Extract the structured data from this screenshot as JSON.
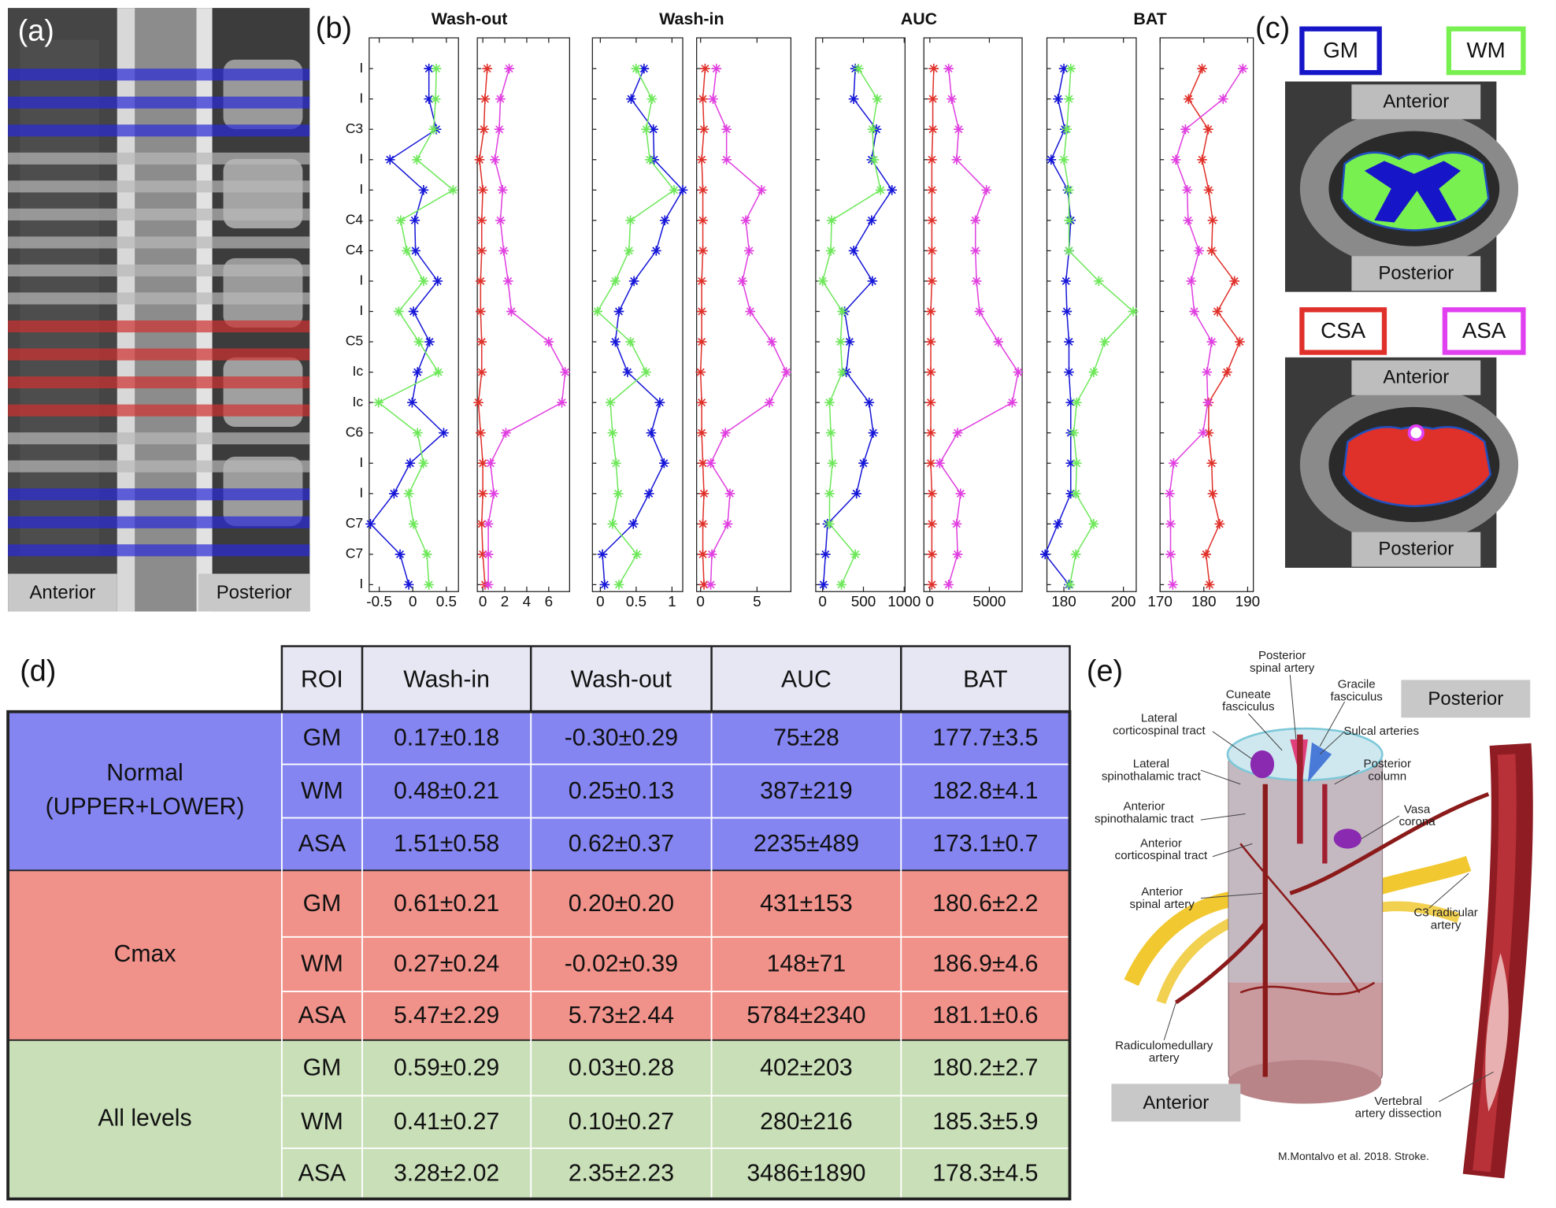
{
  "panels": {
    "a": {
      "label": "(a)",
      "anterior": "Anterior",
      "posterior": "Posterior"
    },
    "b": {
      "label": "(b)"
    },
    "c": {
      "label": "(c)",
      "legend": [
        {
          "label": "GM",
          "color": "#1616c8"
        },
        {
          "label": "WM",
          "color": "#78f050"
        },
        {
          "label": "CSA",
          "color": "#e0302a"
        },
        {
          "label": "ASA",
          "color": "#e040f0"
        }
      ],
      "views": [
        {
          "anterior": "Anterior",
          "posterior": "Posterior"
        },
        {
          "anterior": "Anterior",
          "posterior": "Posterior"
        }
      ]
    },
    "d": {
      "label": "(d)"
    },
    "e": {
      "label": "(e)",
      "posterior": "Posterior",
      "anterior": "Anterior",
      "citation": "M.Montalvo et al. 2018. Stroke.",
      "annotations": [
        {
          "lines": [
            "Posterior",
            "spinal artery"
          ]
        },
        {
          "lines": [
            "Gracile",
            "fasciculus"
          ]
        },
        {
          "lines": [
            "Cuneate",
            "fasciculus"
          ]
        },
        {
          "lines": [
            "Lateral",
            "corticospinal tract"
          ]
        },
        {
          "lines": [
            "Sulcal arteries"
          ]
        },
        {
          "lines": [
            "Posterior",
            "column"
          ]
        },
        {
          "lines": [
            "Lateral",
            "spinothalamic tract"
          ]
        },
        {
          "lines": [
            "Vasa",
            "corona"
          ]
        },
        {
          "lines": [
            "Anterior",
            "spinothalamic tract"
          ]
        },
        {
          "lines": [
            "Anterior",
            "corticospinal tract"
          ]
        },
        {
          "lines": [
            "Anterior",
            "spinal artery"
          ]
        },
        {
          "lines": [
            "C3 radicular",
            "artery"
          ]
        },
        {
          "lines": [
            "Radiculomedullary",
            "artery"
          ]
        },
        {
          "lines": [
            "Vertebral",
            "artery dissection"
          ]
        }
      ]
    }
  },
  "table": {
    "header": [
      "ROI",
      "Wash-in",
      "Wash-out",
      "AUC",
      "BAT"
    ],
    "groups": [
      {
        "label": [
          "Normal",
          "(UPPER+LOWER)"
        ],
        "rows": [
          [
            "GM",
            "0.17±0.18",
            "-0.30±0.29",
            "75±28",
            "177.7±3.5"
          ],
          [
            "WM",
            "0.48±0.21",
            "0.25±0.13",
            "387±219",
            "182.8±4.1"
          ],
          [
            "ASA",
            "1.51±0.58",
            "0.62±0.37",
            "2235±489",
            "173.1±0.7"
          ]
        ]
      },
      {
        "label": [
          "Cmax"
        ],
        "rows": [
          [
            "GM",
            "0.61±0.21",
            "0.20±0.20",
            "431±153",
            "180.6±2.2"
          ],
          [
            "WM",
            "0.27±0.24",
            "-0.02±0.39",
            "148±71",
            "186.9±4.6"
          ],
          [
            "ASA",
            "5.47±2.29",
            "5.73±2.44",
            "5784±2340",
            "181.1±0.6"
          ]
        ]
      },
      {
        "label": [
          "All levels"
        ],
        "rows": [
          [
            "GM",
            "0.59±0.29",
            "0.03±0.28",
            "402±203",
            "180.2±2.7"
          ],
          [
            "WM",
            "0.41±0.27",
            "0.10±0.27",
            "280±216",
            "185.3±5.9"
          ],
          [
            "ASA",
            "3.28±2.02",
            "2.35±2.23",
            "3486±1890",
            "178.3±4.5"
          ]
        ]
      }
    ]
  },
  "chart_data": [
    {
      "type": "line",
      "title": "Wash-out",
      "categories": [
        "I",
        "I",
        "C3",
        "I",
        "I",
        "C4",
        "C4",
        "I",
        "I",
        "C5",
        "Ic",
        "Ic",
        "C6",
        "I",
        "I",
        "C7",
        "C7",
        "I"
      ],
      "xlim": [
        -0.65,
        0.68
      ],
      "xticks": [
        -0.5,
        0,
        0.5
      ],
      "series": [
        {
          "color": "#1616d8",
          "values": [
            0.24,
            0.24,
            0.35,
            -0.34,
            0.16,
            0.03,
            0.04,
            0.37,
            0.01,
            0.25,
            0.07,
            -0.01,
            0.46,
            -0.04,
            -0.28,
            -0.63,
            -0.19,
            -0.06
          ]
        },
        {
          "color": "#6ee85a",
          "values": [
            0.35,
            0.34,
            0.31,
            0.06,
            0.6,
            -0.18,
            -0.09,
            0.16,
            -0.21,
            0.09,
            0.38,
            -0.51,
            0.07,
            0.16,
            -0.06,
            0.01,
            0.21,
            0.24
          ]
        }
      ]
    },
    {
      "type": "line",
      "xlim": [
        -0.5,
        7.9
      ],
      "xticks": [
        0,
        2,
        4,
        6
      ],
      "series": [
        {
          "color": "#e0302a",
          "values": [
            0.4,
            0.2,
            0.1,
            -0.3,
            0,
            -0.1,
            -0.1,
            -0.2,
            -0.2,
            -0.1,
            -0.1,
            -0.4,
            -0.2,
            0,
            0,
            -0.1,
            0,
            0.2
          ]
        },
        {
          "color": "#e040e0",
          "values": [
            2.4,
            1.6,
            1.5,
            1.1,
            1.8,
            1.6,
            1.9,
            2.3,
            2.6,
            6.0,
            7.5,
            7.2,
            2.1,
            0.7,
            1.0,
            0.5,
            0.5,
            0.5
          ]
        }
      ]
    },
    {
      "type": "line",
      "title": "Wash-in",
      "xlim": [
        -0.11,
        1.15
      ],
      "xticks": [
        0,
        0.5,
        1
      ],
      "series": [
        {
          "color": "#1616d8",
          "values": [
            0.61,
            0.43,
            0.74,
            0.75,
            1.15,
            0.9,
            0.78,
            0.47,
            0.26,
            0.21,
            0.38,
            0.83,
            0.71,
            0.89,
            0.68,
            0.46,
            0.03,
            0.06
          ]
        },
        {
          "color": "#6ee85a",
          "values": [
            0.5,
            0.72,
            0.64,
            0.69,
            1.03,
            0.42,
            0.4,
            0.21,
            -0.04,
            0.42,
            0.64,
            0.14,
            0.17,
            0.22,
            0.25,
            0.17,
            0.51,
            0.26
          ]
        }
      ]
    },
    {
      "type": "line",
      "xlim": [
        -0.35,
        8
      ],
      "xticks": [
        0,
        5
      ],
      "series": [
        {
          "color": "#e0302a",
          "values": [
            0.4,
            0.2,
            0.3,
            0.1,
            0.2,
            0.2,
            0.2,
            0.1,
            0.1,
            0.1,
            0,
            0.1,
            0.1,
            0.2,
            0.3,
            0.2,
            0.2,
            0.3
          ]
        },
        {
          "color": "#e040e0",
          "values": [
            1.4,
            1.1,
            2.3,
            2.3,
            5.4,
            4.0,
            4.3,
            3.7,
            4.4,
            6.3,
            7.6,
            6.1,
            2.2,
            0.9,
            2.6,
            2.4,
            1.0,
            0.9
          ]
        }
      ]
    },
    {
      "type": "line",
      "title": "AUC",
      "xlim": [
        -85,
        1010
      ],
      "xticks": [
        0,
        500,
        1000
      ],
      "series": [
        {
          "color": "#1616d8",
          "values": [
            400,
            380,
            660,
            600,
            850,
            600,
            380,
            610,
            270,
            330,
            290,
            570,
            620,
            500,
            415,
            60,
            35,
            10
          ]
        },
        {
          "color": "#6ee85a",
          "values": [
            440,
            670,
            610,
            630,
            710,
            110,
            100,
            0,
            240,
            220,
            240,
            85,
            100,
            120,
            85,
            85,
            400,
            230
          ]
        }
      ]
    },
    {
      "type": "line",
      "xlim": [
        -500,
        7750
      ],
      "xticks": [
        0,
        5000
      ],
      "series": [
        {
          "color": "#e0302a",
          "values": [
            330,
            250,
            250,
            170,
            170,
            170,
            170,
            170,
            80,
            80,
            80,
            80,
            80,
            80,
            170,
            170,
            170,
            170
          ]
        },
        {
          "color": "#e040e0",
          "values": [
            1580,
            1830,
            2420,
            2250,
            4750,
            3830,
            3830,
            3920,
            4170,
            5750,
            7420,
            6920,
            2330,
            830,
            2580,
            2250,
            2330,
            1580
          ]
        }
      ]
    },
    {
      "type": "line",
      "title": "BAT",
      "xlim": [
        174.3,
        204.3
      ],
      "xticks": [
        180,
        200
      ],
      "series": [
        {
          "color": "#1616d8",
          "values": [
            180,
            178,
            180.3,
            175.7,
            181.3,
            182.3,
            181.7,
            180.7,
            181,
            181.7,
            181.7,
            182.3,
            182.3,
            182.3,
            182.3,
            178,
            173.7,
            181.7
          ]
        },
        {
          "color": "#6ee85a",
          "values": [
            182.3,
            181.7,
            181,
            180,
            181.7,
            181.7,
            181.7,
            191.7,
            203.3,
            193.7,
            190,
            184.3,
            183.3,
            184.3,
            184,
            190,
            184,
            182
          ]
        }
      ]
    },
    {
      "type": "line",
      "xlim": [
        170,
        191.3
      ],
      "xticks": [
        170,
        180,
        190
      ],
      "series": [
        {
          "color": "#e0302a",
          "values": [
            179.6,
            176.5,
            181,
            179.6,
            181.1,
            182,
            181.8,
            187,
            183.1,
            188.2,
            185.3,
            181.1,
            181.1,
            181.8,
            182,
            183.6,
            180.5,
            181.3
          ]
        },
        {
          "color": "#e040e0",
          "values": [
            188.9,
            184.4,
            175.8,
            173.6,
            176.2,
            176.4,
            178.9,
            177.1,
            177.8,
            181.8,
            180.7,
            180.9,
            179.8,
            173.1,
            172.2,
            172.4,
            172.4,
            172.9
          ]
        }
      ]
    }
  ]
}
